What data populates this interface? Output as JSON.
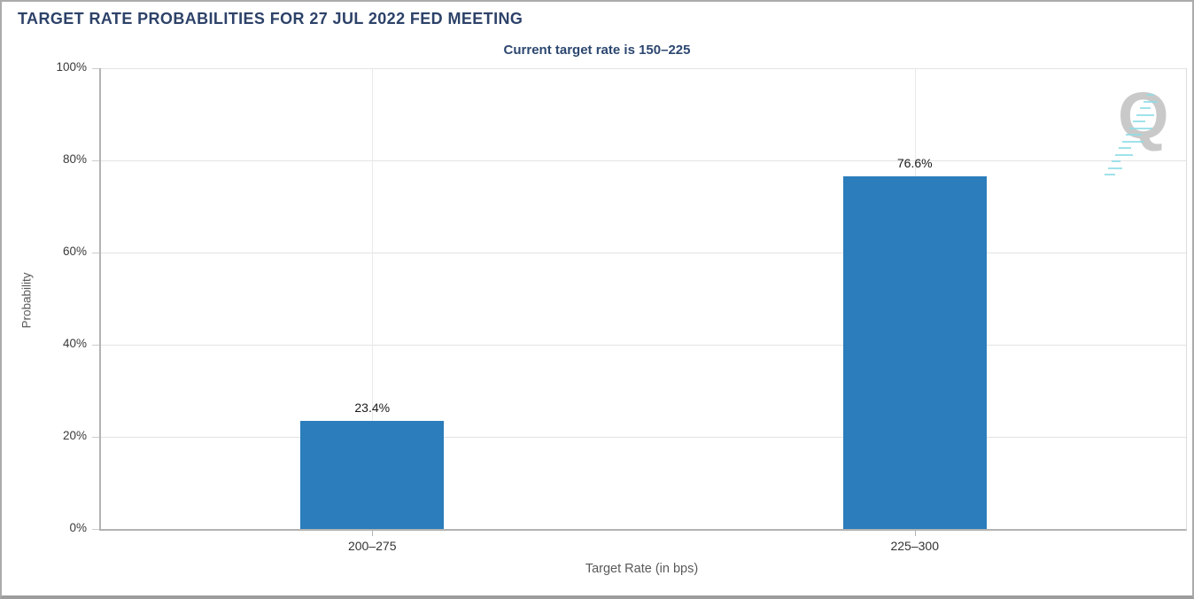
{
  "title": "TARGET RATE PROBABILITIES FOR 27 JUL 2022 FED MEETING",
  "subtitle": "Current target rate is 150–225",
  "watermark": {
    "letter": "Q",
    "dash_color": "#8fdde6",
    "q_color": "#c9c9c9"
  },
  "chart_data": {
    "type": "bar",
    "title": "TARGET RATE PROBABILITIES FOR 27 JUL 2022 FED MEETING",
    "subtitle": "Current target rate is 150–225",
    "categories": [
      "200–275",
      "225–300"
    ],
    "values": [
      23.4,
      76.6
    ],
    "value_labels": [
      "23.4%",
      "76.6%"
    ],
    "xlabel": "Target Rate (in bps)",
    "ylabel": "Probability",
    "ylim": [
      0,
      100
    ],
    "yticks": [
      0,
      20,
      40,
      60,
      80,
      100
    ],
    "ytick_labels": [
      "0%",
      "20%",
      "40%",
      "60%",
      "80%",
      "100%"
    ],
    "grid": true,
    "legend": false,
    "bar_color": "#2b7dbb"
  }
}
